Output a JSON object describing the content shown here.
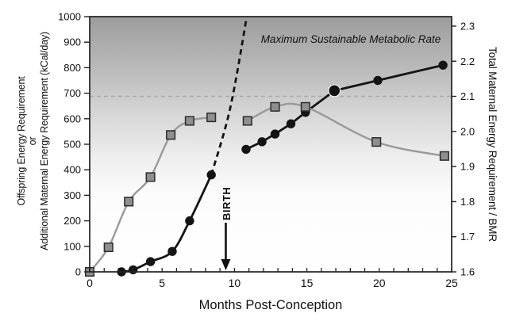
{
  "figure": {
    "type": "scientific-line-chart",
    "background": "#ffffff"
  },
  "labels": {
    "x_axis_title": "Months Post-Conception",
    "left_axis_line1": "Offspring Energy Requirement",
    "left_axis_line2": "or",
    "left_axis_line3": "Additional Maternal Energy Requirement  (kCal/day)",
    "right_axis_title": "Total Maternal Energy Requirement / BMR",
    "birth_annotation": "BIRTH",
    "ceiling_annotation": "Maximum Sustainable Metabolic Rate",
    "star_glyph": "★"
  },
  "colors": {
    "black_series": "#141414",
    "gray_series_line": "#999999",
    "gray_marker_fill": "#8f8f8f",
    "gray_marker_stroke": "#2b2b2b",
    "ceiling_dash": "#a9a9a9",
    "frame": "#222222",
    "text": "#111111",
    "band_top": "#9d9d9d",
    "band_mid": "#d6d6d6",
    "band_bottom": "#ffffff"
  },
  "chart_data": {
    "type": "line",
    "title": "",
    "xlabel": "Months Post-Conception",
    "ylabel_left": "Offspring Energy Requirement or Additional Maternal Energy Requirement (kCal/day)",
    "ylabel_right": "Total Maternal Energy Requirement / BMR",
    "x_range": [
      0,
      25
    ],
    "x_major_ticks": [
      0,
      5,
      10,
      15,
      20,
      25
    ],
    "x_minor_tick_step": 1,
    "yleft_range": [
      0,
      1000
    ],
    "yleft_ticks": [
      0,
      100,
      200,
      300,
      400,
      500,
      600,
      700,
      800,
      900,
      1000
    ],
    "yright_range": [
      1.6,
      2.3
    ],
    "yright_ticks": [
      1.6,
      1.7,
      1.8,
      1.9,
      2.0,
      2.1,
      2.2,
      2.3
    ],
    "yright_axis_top_value": 2.327,
    "grid": false,
    "legend": "none",
    "shaded_band": {
      "label": "Maximum Sustainable Metabolic Rate",
      "extent_note": "gray gradient from top of plot (1000 kCal/day) fading to white near 2.0 BMR level"
    },
    "ceiling_line": {
      "style": "dashed",
      "yright_value": 2.1,
      "yleft_equivalent": 690
    },
    "birth_marker": {
      "x_month": 9.4,
      "label": "BIRTH",
      "arrow": "downward to x-axis"
    },
    "series": [
      {
        "name": "offspring-energy-prebirth",
        "axis": "left",
        "marker": "circle",
        "line_style": "solid",
        "smooth": true,
        "points": [
          [
            2.2,
            0
          ],
          [
            3.0,
            8
          ],
          [
            4.2,
            40
          ],
          [
            5.7,
            80
          ],
          [
            6.9,
            200
          ],
          [
            8.4,
            380
          ]
        ]
      },
      {
        "name": "offspring-energy-postbirth",
        "axis": "left",
        "marker": "circle",
        "line_style": "solid",
        "smooth": false,
        "star_index": 5,
        "points": [
          [
            10.8,
            480
          ],
          [
            11.9,
            510
          ],
          [
            12.8,
            540
          ],
          [
            13.9,
            580
          ],
          [
            14.9,
            625
          ],
          [
            16.9,
            710
          ],
          [
            19.9,
            750
          ],
          [
            24.4,
            810
          ]
        ]
      },
      {
        "name": "maternal-energy-bmr-prebirth",
        "axis": "right",
        "marker": "square",
        "line_style": "solid",
        "smooth": true,
        "points": [
          [
            0,
            1.6
          ],
          [
            1.3,
            1.67
          ],
          [
            2.7,
            1.8
          ],
          [
            4.2,
            1.87
          ],
          [
            5.6,
            1.99
          ],
          [
            6.9,
            2.03
          ],
          [
            8.4,
            2.04
          ]
        ]
      },
      {
        "name": "maternal-energy-bmr-postbirth",
        "axis": "right",
        "marker": "square",
        "line_style": "solid",
        "smooth": true,
        "points": [
          [
            10.9,
            2.03
          ],
          [
            12.8,
            2.07
          ],
          [
            14.9,
            2.07
          ],
          [
            19.8,
            1.97
          ],
          [
            24.5,
            1.93
          ]
        ]
      },
      {
        "name": "projected-gestation-energy-dashed",
        "axis": "left",
        "marker": "none",
        "line_style": "dashed",
        "smooth": true,
        "points": [
          [
            8.4,
            380
          ],
          [
            9.7,
            640
          ],
          [
            10.85,
            1000
          ]
        ]
      }
    ],
    "crossover_star_point": {
      "x_month": 16.9,
      "yleft_value": 710,
      "yright_value": 2.1
    }
  }
}
